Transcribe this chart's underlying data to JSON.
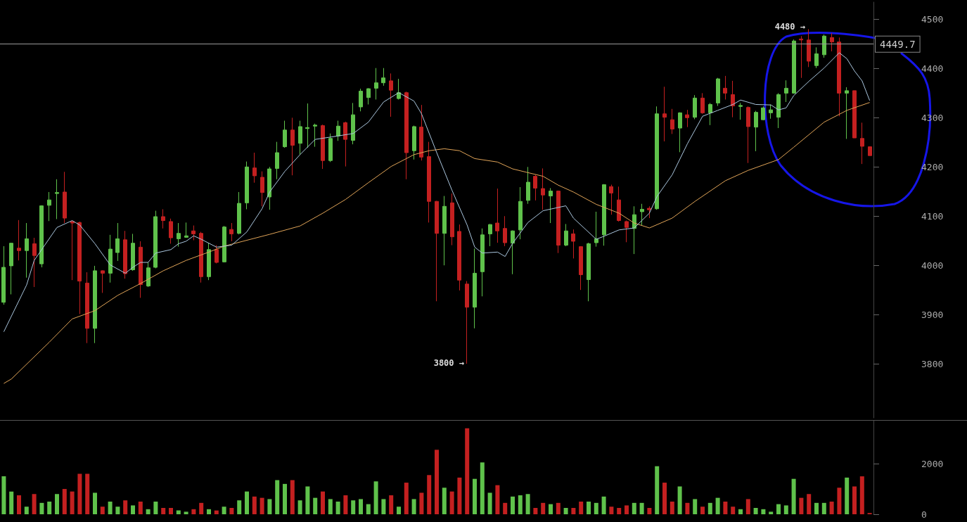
{
  "chart_data": [
    {
      "type": "candlestick",
      "categories": [
        null,
        null,
        null,
        null,
        null,
        null,
        null,
        null,
        null,
        null,
        null,
        null,
        null,
        null,
        null,
        null,
        null,
        null,
        null,
        null,
        null,
        null,
        null,
        null,
        null,
        null,
        null,
        null,
        null,
        null,
        null,
        null,
        null,
        null,
        null,
        null,
        null,
        null,
        null,
        null,
        null,
        null,
        null,
        null,
        null,
        null,
        null,
        null,
        null,
        null,
        null,
        null,
        null,
        null,
        null,
        null,
        null,
        null,
        null,
        null,
        null,
        null,
        null,
        null,
        null,
        null,
        null,
        null,
        null,
        null,
        null,
        null,
        null,
        null,
        null,
        null,
        null,
        null,
        null,
        null,
        null,
        null,
        null,
        null,
        null,
        null,
        null,
        null,
        null,
        null,
        null,
        null,
        null,
        null,
        null,
        null,
        null,
        null,
        null,
        null,
        null,
        null,
        null,
        null,
        null,
        null,
        null,
        null,
        null,
        null,
        null,
        null,
        null,
        null,
        null
      ],
      "ohlc": [
        [
          3925,
          4039,
          3920,
          3996
        ],
        [
          3999,
          4046,
          3941,
          4045
        ],
        [
          4035,
          4092,
          4010,
          4030
        ],
        [
          4030,
          4086,
          3975,
          4054
        ],
        [
          4044,
          4056,
          3956,
          4020
        ],
        [
          4003,
          4122,
          3996,
          4121
        ],
        [
          4122,
          4149,
          4090,
          4133
        ],
        [
          4146,
          4175,
          4094,
          4148
        ],
        [
          4149,
          4190,
          4086,
          4096
        ],
        [
          4089,
          4091,
          3970,
          4086
        ],
        [
          4087,
          4089,
          3901,
          3968
        ],
        [
          3964,
          3986,
          3842,
          3872
        ],
        [
          3872,
          3999,
          3842,
          3989
        ],
        [
          3989,
          3990,
          3944,
          3984
        ],
        [
          3984,
          4062,
          3965,
          4033
        ],
        [
          4026,
          4086,
          4009,
          4054
        ],
        [
          4052,
          4070,
          3973,
          3983
        ],
        [
          3991,
          4064,
          3989,
          4045
        ],
        [
          4037,
          4049,
          3934,
          3961
        ],
        [
          3958,
          4006,
          3956,
          3995
        ],
        [
          3996,
          4111,
          3994,
          4099
        ],
        [
          4099,
          4114,
          4075,
          4091
        ],
        [
          4089,
          4095,
          4044,
          4056
        ],
        [
          4054,
          4086,
          4038,
          4065
        ],
        [
          4057,
          4087,
          4056,
          4060
        ],
        [
          4070,
          4081,
          4051,
          4064
        ],
        [
          4065,
          4068,
          3965,
          3977
        ],
        [
          3977,
          4046,
          3970,
          4032
        ],
        [
          4032,
          4041,
          4004,
          4006
        ],
        [
          4007,
          4080,
          4006,
          4078
        ],
        [
          4073,
          4086,
          4049,
          4064
        ],
        [
          4065,
          4149,
          4063,
          4126
        ],
        [
          4127,
          4211,
          4114,
          4200
        ],
        [
          4198,
          4229,
          4168,
          4182
        ],
        [
          4179,
          4191,
          4120,
          4148
        ],
        [
          4139,
          4200,
          4113,
          4196
        ],
        [
          4197,
          4251,
          4175,
          4229
        ],
        [
          4241,
          4294,
          4239,
          4275
        ],
        [
          4275,
          4300,
          4183,
          4244
        ],
        [
          4248,
          4294,
          4225,
          4282
        ],
        [
          4278,
          4329,
          4239,
          4280
        ],
        [
          4283,
          4288,
          4241,
          4285
        ],
        [
          4284,
          4286,
          4196,
          4213
        ],
        [
          4213,
          4268,
          4210,
          4258
        ],
        [
          4263,
          4294,
          4253,
          4283
        ],
        [
          4290,
          4292,
          4201,
          4256
        ],
        [
          4254,
          4330,
          4246,
          4306
        ],
        [
          4322,
          4359,
          4313,
          4354
        ],
        [
          4341,
          4360,
          4327,
          4359
        ],
        [
          4360,
          4401,
          4337,
          4371
        ],
        [
          4371,
          4401,
          4365,
          4381
        ],
        [
          4375,
          4390,
          4302,
          4356
        ],
        [
          4339,
          4379,
          4337,
          4351
        ],
        [
          4351,
          4353,
          4175,
          4229
        ],
        [
          4233,
          4284,
          4215,
          4282
        ],
        [
          4281,
          4326,
          4213,
          4220
        ],
        [
          4221,
          4251,
          4087,
          4130
        ],
        [
          4130,
          4131,
          3927,
          4065
        ],
        [
          4065,
          4141,
          4000,
          4120
        ],
        [
          4127,
          4146,
          4041,
          4058
        ],
        [
          4069,
          4083,
          3949,
          3970
        ],
        [
          3962,
          3968,
          3800,
          3915
        ],
        [
          3915,
          4034,
          3872,
          3984
        ],
        [
          3987,
          4075,
          3937,
          4062
        ],
        [
          4064,
          4084,
          4039,
          4083
        ],
        [
          4086,
          4156,
          4046,
          4070
        ],
        [
          4075,
          4100,
          4039,
          4046
        ],
        [
          4045,
          4071,
          3982,
          4070
        ],
        [
          4072,
          4159,
          4053,
          4130
        ],
        [
          4132,
          4200,
          4125,
          4169
        ],
        [
          4181,
          4184,
          4132,
          4157
        ],
        [
          4156,
          4197,
          4113,
          4143
        ],
        [
          4141,
          4157,
          4086,
          4151
        ],
        [
          4151,
          4152,
          4025,
          4041
        ],
        [
          4041,
          4084,
          4039,
          4070
        ],
        [
          4064,
          4073,
          4014,
          4049
        ],
        [
          4038,
          4039,
          3950,
          3981
        ],
        [
          3971,
          4046,
          3927,
          4044
        ],
        [
          4046,
          4109,
          4038,
          4054
        ],
        [
          4062,
          4165,
          4040,
          4164
        ],
        [
          4160,
          4164,
          4103,
          4147
        ],
        [
          4133,
          4160,
          4089,
          4091
        ],
        [
          4089,
          4091,
          4047,
          4077
        ],
        [
          4075,
          4120,
          4023,
          4103
        ],
        [
          4109,
          4125,
          4081,
          4114
        ],
        [
          4116,
          4120,
          4096,
          4113
        ],
        [
          4115,
          4323,
          4113,
          4308
        ],
        [
          4308,
          4363,
          4252,
          4301
        ],
        [
          4296,
          4318,
          4267,
          4277
        ],
        [
          4279,
          4311,
          4230,
          4310
        ],
        [
          4306,
          4316,
          4281,
          4300
        ],
        [
          4301,
          4346,
          4297,
          4340
        ],
        [
          4340,
          4350,
          4308,
          4310
        ],
        [
          4310,
          4330,
          4285,
          4327
        ],
        [
          4330,
          4381,
          4324,
          4379
        ],
        [
          4360,
          4385,
          4337,
          4350
        ],
        [
          4347,
          4375,
          4301,
          4324
        ],
        [
          4323,
          4330,
          4296,
          4325
        ],
        [
          4321,
          4323,
          4208,
          4282
        ],
        [
          4281,
          4314,
          4232,
          4311
        ],
        [
          4296,
          4323,
          4295,
          4320
        ],
        [
          4310,
          4327,
          4298,
          4316
        ],
        [
          4301,
          4350,
          4279,
          4347
        ],
        [
          4350,
          4376,
          4332,
          4360
        ],
        [
          4350,
          4459,
          4349,
          4456
        ],
        [
          4460,
          4466,
          4381,
          4458
        ],
        [
          4458,
          4480,
          4403,
          4415
        ],
        [
          4406,
          4443,
          4401,
          4430
        ],
        [
          4428,
          4469,
          4422,
          4466
        ],
        [
          4463,
          4472,
          4435,
          4454
        ],
        [
          4454,
          4463,
          4303,
          4350
        ],
        [
          4350,
          4362,
          4257,
          4355
        ],
        [
          4355,
          4355,
          4259,
          4259
        ],
        [
          4258,
          4290,
          4206,
          4242
        ],
        [
          4241,
          4241,
          4223,
          4223
        ]
      ],
      "colors": [
        "#5fc24b",
        "#5fc24b",
        "#c42020",
        "#5fc24b",
        "#c42020",
        "#5fc24b",
        "#5fc24b",
        "#5fc24b",
        "#c42020",
        "#c42020",
        "#c42020",
        "#c42020",
        "#5fc24b",
        "#c42020",
        "#5fc24b",
        "#5fc24b",
        "#c42020",
        "#5fc24b",
        "#c42020",
        "#5fc24b",
        "#5fc24b",
        "#c42020",
        "#c42020",
        "#5fc24b",
        "#5fc24b",
        "#c42020",
        "#c42020",
        "#5fc24b",
        "#c42020",
        "#5fc24b",
        "#c42020",
        "#5fc24b",
        "#5fc24b",
        "#c42020",
        "#c42020",
        "#5fc24b",
        "#5fc24b",
        "#5fc24b",
        "#c42020",
        "#5fc24b",
        "#5fc24b",
        "#5fc24b",
        "#c42020",
        "#5fc24b",
        "#5fc24b",
        "#c42020",
        "#5fc24b",
        "#5fc24b",
        "#5fc24b",
        "#5fc24b",
        "#5fc24b",
        "#c42020",
        "#5fc24b",
        "#c42020",
        "#5fc24b",
        "#c42020",
        "#c42020",
        "#c42020",
        "#5fc24b",
        "#c42020",
        "#c42020",
        "#c42020",
        "#5fc24b",
        "#5fc24b",
        "#5fc24b",
        "#c42020",
        "#c42020",
        "#5fc24b",
        "#5fc24b",
        "#5fc24b",
        "#c42020",
        "#c42020",
        "#5fc24b",
        "#c42020",
        "#5fc24b",
        "#c42020",
        "#c42020",
        "#5fc24b",
        "#5fc24b",
        "#5fc24b",
        "#c42020",
        "#c42020",
        "#c42020",
        "#5fc24b",
        "#5fc24b",
        "#c42020",
        "#5fc24b",
        "#c42020",
        "#c42020",
        "#5fc24b",
        "#c42020",
        "#5fc24b",
        "#c42020",
        "#5fc24b",
        "#5fc24b",
        "#c42020",
        "#c42020",
        "#5fc24b",
        "#c42020",
        "#5fc24b",
        "#5fc24b",
        "#5fc24b",
        "#5fc24b",
        "#5fc24b",
        "#5fc24b",
        "#c42020",
        "#c42020",
        "#5fc24b",
        "#5fc24b",
        "#c42020",
        "#c42020",
        "#5fc24b",
        "#c42020",
        "#c42020",
        "#c42020"
      ],
      "series": [
        {
          "type": "line",
          "color": "#aac6de",
          "values": [
            3865,
            null,
            null,
            3960,
            4010,
            null,
            null,
            4077,
            null,
            4091,
            4082,
            null,
            4044,
            null,
            4001,
            null,
            3984,
            3996,
            4006,
            4006,
            4025,
            null,
            4032,
            4044,
            4049,
            4060,
            4053,
            null,
            4037,
            null,
            4041,
            null,
            4068,
            null,
            4115,
            4149,
            null,
            4191,
            null,
            4225,
            null,
            4256,
            null,
            null,
            4263,
            null,
            4268,
            null,
            4291,
            null,
            4332,
            null,
            4351,
            null,
            4334,
            4308,
            null,
            4229,
            null,
            4153,
            null,
            4082,
            4037,
            4025,
            null,
            4027,
            4018,
            4045,
            null,
            4087,
            null,
            4111,
            null,
            null,
            4121,
            4096,
            null,
            null,
            4053,
            4059,
            null,
            4072,
            null,
            4076,
            null,
            4106,
            4140,
            null,
            4184,
            null,
            4247,
            null,
            4303,
            null,
            4315,
            null,
            4327,
            4336,
            null,
            4327,
            null,
            4326,
            4316,
            4320,
            4345,
            null,
            4374,
            null,
            4401,
            null,
            4432,
            4420,
            4395,
            4375,
            4335
          ]
        },
        {
          "type": "line",
          "color": "#e0a458",
          "values": [
            3760,
            3769,
            null,
            null,
            null,
            null,
            3844,
            null,
            null,
            3891,
            null,
            null,
            3908,
            null,
            null,
            3939,
            null,
            null,
            3963,
            null,
            null,
            3989,
            null,
            null,
            4010,
            null,
            null,
            4027,
            null,
            4039,
            null,
            null,
            4051,
            null,
            null,
            4063,
            null,
            null,
            null,
            4080,
            null,
            null,
            4106,
            null,
            null,
            4134,
            null,
            null,
            4168,
            null,
            null,
            4201,
            null,
            null,
            4225,
            null,
            4233,
            null,
            4237,
            null,
            4233,
            null,
            4217,
            null,
            null,
            4210,
            null,
            4196,
            null,
            null,
            null,
            4181,
            null,
            4163,
            null,
            4149,
            null,
            null,
            4124,
            null,
            null,
            4106,
            null,
            4086,
            null,
            4076,
            null,
            null,
            4096,
            null,
            null,
            4130,
            null,
            null,
            null,
            4172,
            null,
            null,
            4193,
            null,
            null,
            null,
            4215,
            null,
            4240,
            null,
            null,
            null,
            4291,
            null,
            null,
            4315,
            null,
            null,
            4331
          ]
        }
      ],
      "ylim": [
        3690,
        4535
      ],
      "yticks": [
        3800,
        3900,
        4000,
        4100,
        4200,
        4300,
        4400,
        4500
      ],
      "ref_lines": [
        {
          "axis": "y",
          "value": 4449.7,
          "label": "4449.7",
          "color": "#9a9a9a"
        }
      ],
      "annotations": [
        "4480 →",
        "3800 →"
      ],
      "tick_labels": "y"
    },
    {
      "type": "bar",
      "categories": [
        null,
        null,
        null,
        null,
        null,
        null,
        null,
        null,
        null,
        null,
        null,
        null,
        null,
        null,
        null,
        null,
        null,
        null,
        null,
        null,
        null,
        null,
        null,
        null,
        null,
        null,
        null,
        null,
        null,
        null,
        null,
        null,
        null,
        null,
        null,
        null,
        null,
        null,
        null,
        null,
        null,
        null,
        null,
        null,
        null,
        null,
        null,
        null,
        null,
        null,
        null,
        null,
        null,
        null,
        null,
        null,
        null,
        null,
        null,
        null,
        null,
        null,
        null,
        null,
        null,
        null,
        null,
        null,
        null,
        null,
        null,
        null,
        null,
        null,
        null,
        null,
        null,
        null,
        null,
        null,
        null,
        null,
        null,
        null,
        null,
        null,
        null,
        null,
        null,
        null,
        null,
        null,
        null,
        null,
        null,
        null,
        null,
        null,
        null,
        null,
        null,
        null,
        null,
        null,
        null,
        null,
        null,
        null,
        null,
        null,
        null,
        null,
        null,
        null,
        null
      ],
      "values": [
        1500,
        900,
        750,
        300,
        800,
        450,
        500,
        800,
        1000,
        900,
        1600,
        1600,
        850,
        300,
        500,
        300,
        550,
        350,
        500,
        200,
        500,
        250,
        250,
        150,
        100,
        200,
        450,
        200,
        150,
        300,
        250,
        550,
        900,
        700,
        650,
        600,
        1350,
        1200,
        1350,
        550,
        1100,
        650,
        900,
        600,
        500,
        750,
        550,
        600,
        400,
        1300,
        600,
        750,
        300,
        1250,
        600,
        850,
        1550,
        2550,
        1050,
        900,
        1450,
        3400,
        1400,
        2050,
        850,
        1150,
        450,
        700,
        750,
        800,
        250,
        450,
        400,
        450,
        250,
        250,
        500,
        500,
        450,
        700,
        300,
        250,
        350,
        450,
        450,
        250,
        1900,
        1250,
        500,
        1100,
        450,
        600,
        300,
        450,
        650,
        500,
        300,
        200,
        600,
        250,
        200,
        100,
        400,
        350,
        1400,
        650,
        800,
        450,
        450,
        500,
        1050,
        1450,
        1100,
        1500,
        50
      ],
      "colors": [
        "#5fc24b",
        "#5fc24b",
        "#c42020",
        "#5fc24b",
        "#c42020",
        "#5fc24b",
        "#5fc24b",
        "#5fc24b",
        "#c42020",
        "#c42020",
        "#c42020",
        "#c42020",
        "#5fc24b",
        "#c42020",
        "#5fc24b",
        "#5fc24b",
        "#c42020",
        "#5fc24b",
        "#c42020",
        "#5fc24b",
        "#5fc24b",
        "#c42020",
        "#c42020",
        "#5fc24b",
        "#5fc24b",
        "#c42020",
        "#c42020",
        "#5fc24b",
        "#c42020",
        "#5fc24b",
        "#c42020",
        "#5fc24b",
        "#5fc24b",
        "#c42020",
        "#c42020",
        "#5fc24b",
        "#5fc24b",
        "#5fc24b",
        "#c42020",
        "#5fc24b",
        "#5fc24b",
        "#5fc24b",
        "#c42020",
        "#5fc24b",
        "#5fc24b",
        "#c42020",
        "#5fc24b",
        "#5fc24b",
        "#5fc24b",
        "#5fc24b",
        "#5fc24b",
        "#c42020",
        "#5fc24b",
        "#c42020",
        "#5fc24b",
        "#c42020",
        "#c42020",
        "#c42020",
        "#5fc24b",
        "#c42020",
        "#c42020",
        "#c42020",
        "#5fc24b",
        "#5fc24b",
        "#5fc24b",
        "#c42020",
        "#c42020",
        "#5fc24b",
        "#5fc24b",
        "#5fc24b",
        "#c42020",
        "#c42020",
        "#5fc24b",
        "#c42020",
        "#5fc24b",
        "#c42020",
        "#c42020",
        "#5fc24b",
        "#5fc24b",
        "#5fc24b",
        "#c42020",
        "#c42020",
        "#c42020",
        "#5fc24b",
        "#5fc24b",
        "#c42020",
        "#5fc24b",
        "#c42020",
        "#c42020",
        "#5fc24b",
        "#c42020",
        "#5fc24b",
        "#c42020",
        "#5fc24b",
        "#5fc24b",
        "#c42020",
        "#c42020",
        "#5fc24b",
        "#c42020",
        "#5fc24b",
        "#5fc24b",
        "#5fc24b",
        "#5fc24b",
        "#5fc24b",
        "#5fc24b",
        "#c42020",
        "#c42020",
        "#5fc24b",
        "#5fc24b",
        "#c42020",
        "#c42020",
        "#5fc24b",
        "#c42020",
        "#c42020",
        "#c42020"
      ],
      "ylim": [
        0,
        3700
      ],
      "yticks": [
        0,
        2000
      ],
      "tick_labels": "y"
    }
  ]
}
